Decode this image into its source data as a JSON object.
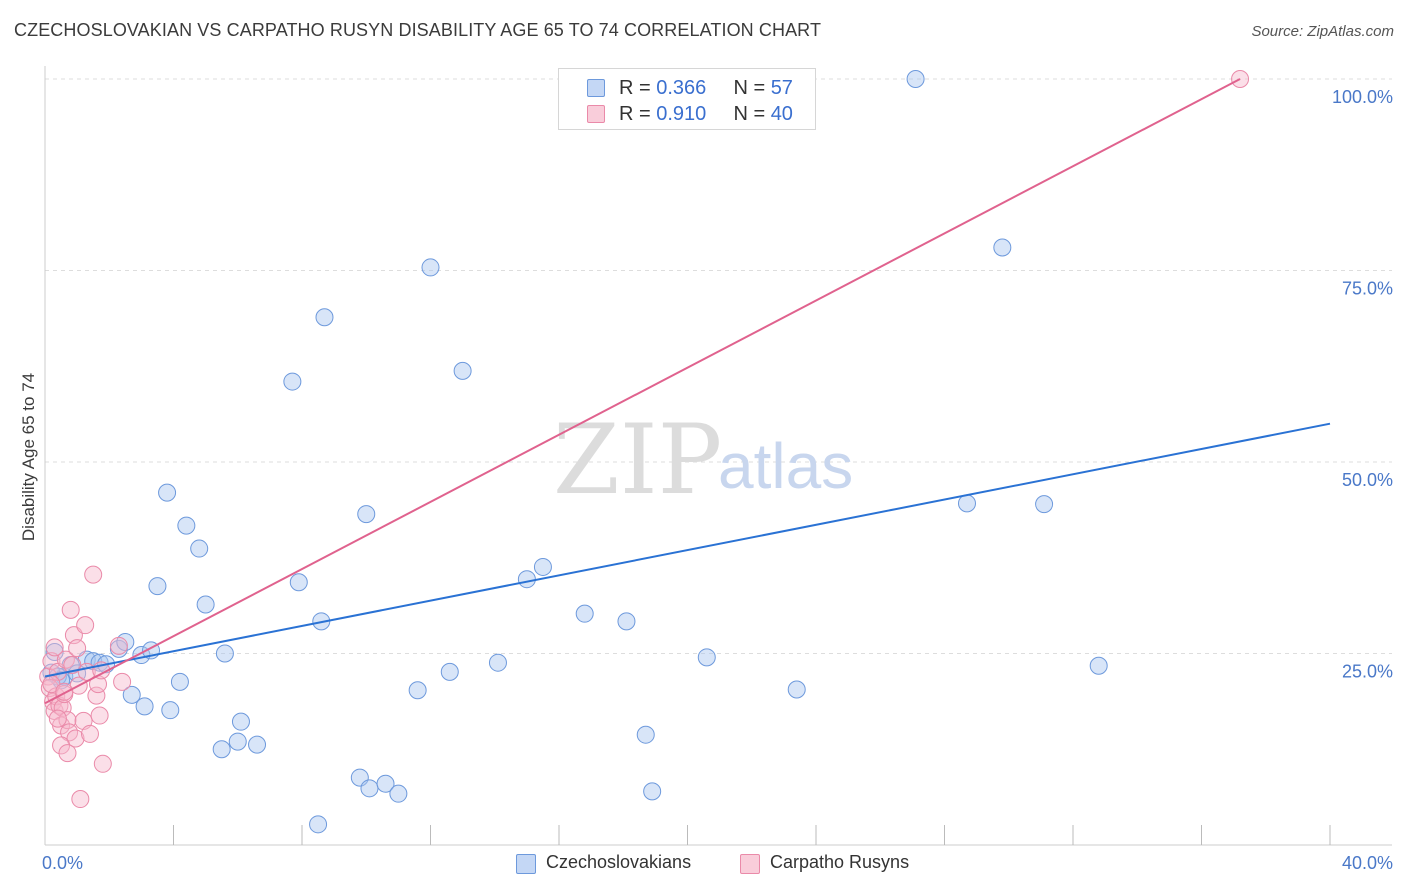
{
  "title": "CZECHOSLOVAKIAN VS CARPATHO RUSYN DISABILITY AGE 65 TO 74 CORRELATION CHART",
  "source": "Source: ZipAtlas.com",
  "watermark": {
    "zip": "ZIP",
    "atlas": "atlas"
  },
  "colors": {
    "blue_fill": "#a9c6f0",
    "blue_stroke": "#6d99dc",
    "blue_line": "#2a72d4",
    "pink_fill": "#f7b8cc",
    "pink_stroke": "#ea8aa9",
    "pink_line": "#e0628e",
    "grid": "#dddddd",
    "tick_text": "#4a78c8"
  },
  "legend_top": [
    {
      "r_label": "R = ",
      "r_value": "0.366",
      "n_label": "N = ",
      "n_value": "57",
      "color": "blue"
    },
    {
      "r_label": "R = ",
      "r_value": "0.910",
      "n_label": "N = ",
      "n_value": "40",
      "color": "pink"
    }
  ],
  "legend_bottom": [
    "Czechoslovakians",
    "Carpatho Rusyns"
  ],
  "chart_data": {
    "type": "scatter",
    "title": "CZECHOSLOVAKIAN VS CARPATHO RUSYN DISABILITY AGE 65 TO 74 CORRELATION CHART",
    "xlabel": "",
    "ylabel": "Disability Age 65 to 74",
    "xlim": [
      0,
      40
    ],
    "ylim": [
      0,
      100
    ],
    "x_tick_labels": [
      "0.0%",
      "40.0%"
    ],
    "y_tick_labels": [
      "100.0%",
      "75.0%",
      "50.0%",
      "25.0%"
    ],
    "y_ticks": [
      100,
      75,
      50,
      25
    ],
    "series": [
      {
        "name": "Czechoslovakians",
        "color": "blue",
        "trend": {
          "x": [
            0,
            40
          ],
          "y": [
            22.0,
            55.0
          ]
        },
        "points": [
          [
            0.3,
            25.2
          ],
          [
            0.6,
            22.0
          ],
          [
            0.8,
            23.5
          ],
          [
            1.0,
            22.4
          ],
          [
            1.3,
            24.2
          ],
          [
            1.5,
            24.0
          ],
          [
            1.7,
            23.8
          ],
          [
            1.9,
            23.6
          ],
          [
            2.3,
            25.6
          ],
          [
            2.5,
            26.5
          ],
          [
            2.7,
            19.6
          ],
          [
            3.0,
            24.8
          ],
          [
            3.1,
            18.1
          ],
          [
            3.3,
            25.4
          ],
          [
            3.5,
            33.8
          ],
          [
            3.8,
            46.0
          ],
          [
            3.9,
            17.6
          ],
          [
            4.2,
            21.3
          ],
          [
            4.4,
            41.7
          ],
          [
            4.8,
            38.7
          ],
          [
            5.0,
            31.4
          ],
          [
            5.5,
            12.5
          ],
          [
            5.6,
            25.0
          ],
          [
            6.1,
            16.1
          ],
          [
            6.0,
            13.5
          ],
          [
            6.6,
            13.1
          ],
          [
            7.7,
            60.5
          ],
          [
            7.9,
            34.3
          ],
          [
            8.5,
            2.7
          ],
          [
            8.6,
            29.2
          ],
          [
            8.7,
            68.9
          ],
          [
            9.8,
            8.8
          ],
          [
            10.1,
            7.4
          ],
          [
            10.0,
            43.2
          ],
          [
            10.6,
            8.0
          ],
          [
            11.0,
            6.7
          ],
          [
            11.6,
            20.2
          ],
          [
            12.0,
            75.4
          ],
          [
            12.6,
            22.6
          ],
          [
            13.0,
            61.9
          ],
          [
            14.1,
            23.8
          ],
          [
            15.0,
            34.7
          ],
          [
            15.5,
            36.3
          ],
          [
            16.8,
            30.2
          ],
          [
            18.1,
            29.2
          ],
          [
            18.7,
            14.4
          ],
          [
            18.9,
            7.0
          ],
          [
            20.6,
            24.5
          ],
          [
            23.4,
            20.3
          ],
          [
            27.1,
            100.0
          ],
          [
            28.7,
            44.6
          ],
          [
            29.8,
            78.0
          ],
          [
            31.1,
            44.5
          ],
          [
            32.8,
            23.4
          ],
          [
            0.2,
            22.5
          ],
          [
            0.4,
            22.0
          ],
          [
            0.5,
            21.5
          ]
        ]
      },
      {
        "name": "Carpatho Rusyns",
        "color": "pink",
        "trend": {
          "x": [
            0,
            37.2
          ],
          "y": [
            18.5,
            100.0
          ]
        },
        "points": [
          [
            0.1,
            22.0
          ],
          [
            0.15,
            20.5
          ],
          [
            0.2,
            24.0
          ],
          [
            0.25,
            18.7
          ],
          [
            0.3,
            17.5
          ],
          [
            0.35,
            19.4
          ],
          [
            0.4,
            22.6
          ],
          [
            0.45,
            18.2
          ],
          [
            0.5,
            15.6
          ],
          [
            0.55,
            17.9
          ],
          [
            0.6,
            19.7
          ],
          [
            0.65,
            24.2
          ],
          [
            0.7,
            16.3
          ],
          [
            0.75,
            14.7
          ],
          [
            0.8,
            30.7
          ],
          [
            0.85,
            23.5
          ],
          [
            0.9,
            27.4
          ],
          [
            0.95,
            13.9
          ],
          [
            1.0,
            25.7
          ],
          [
            1.05,
            20.8
          ],
          [
            1.1,
            6.0
          ],
          [
            1.2,
            16.2
          ],
          [
            1.25,
            28.7
          ],
          [
            1.3,
            22.6
          ],
          [
            1.4,
            14.5
          ],
          [
            1.5,
            35.3
          ],
          [
            1.6,
            19.5
          ],
          [
            1.65,
            21.0
          ],
          [
            1.7,
            16.9
          ],
          [
            1.8,
            10.6
          ],
          [
            1.75,
            22.8
          ],
          [
            2.3,
            26.0
          ],
          [
            2.4,
            21.3
          ],
          [
            0.5,
            13.0
          ],
          [
            0.7,
            12.0
          ],
          [
            0.3,
            25.8
          ],
          [
            0.2,
            21.0
          ],
          [
            0.6,
            20.0
          ],
          [
            0.4,
            16.5
          ],
          [
            37.2,
            100.0
          ]
        ]
      }
    ]
  }
}
